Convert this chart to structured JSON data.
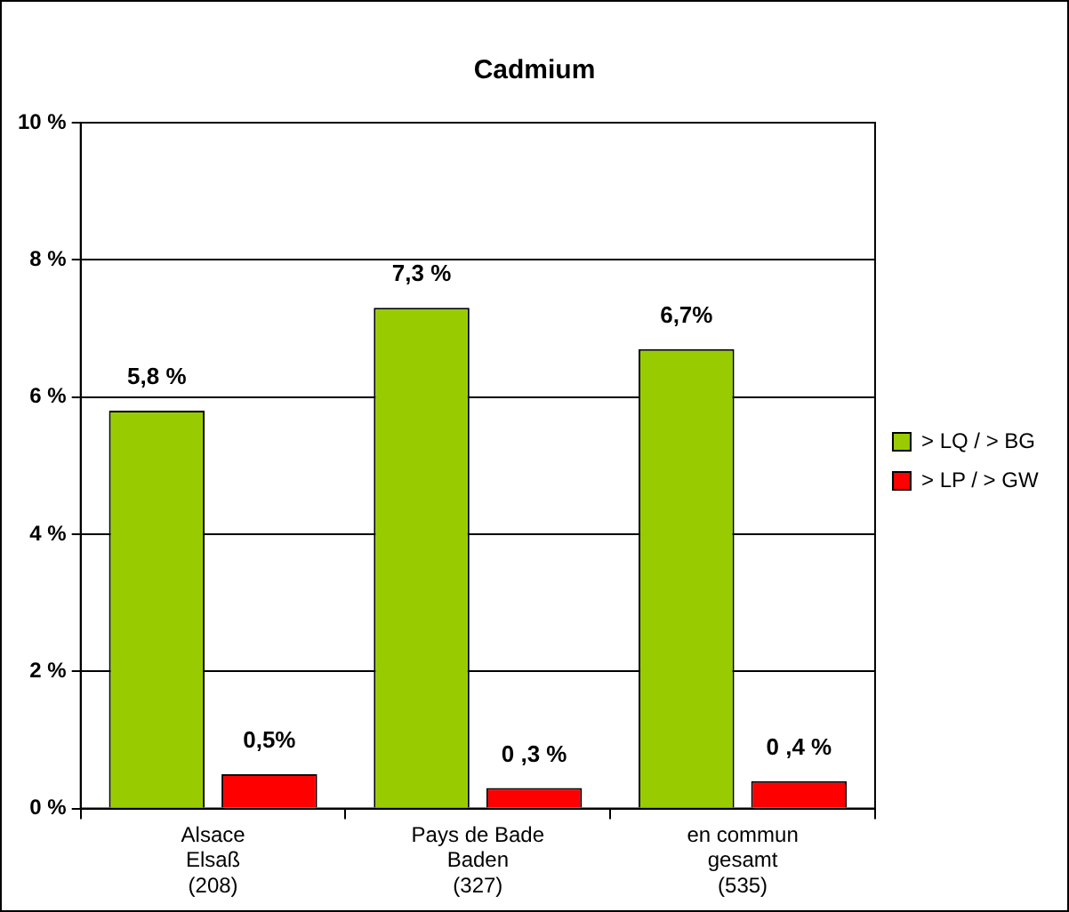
{
  "chart_data": {
    "type": "bar",
    "title": "Cadmium",
    "categories": [
      "Alsace\nElsaß\n(208)",
      "Pays de Bade\nBaden\n(327)",
      "en commun\ngesamt\n(535)"
    ],
    "series": [
      {
        "name": "> LQ / > BG",
        "color": "#99cc00",
        "values": [
          5.8,
          7.3,
          6.7
        ],
        "value_labels": [
          "5,8 %",
          "7,3 %",
          "6,7%"
        ]
      },
      {
        "name": "> LP / > GW",
        "color": "#ff0000",
        "values": [
          0.5,
          0.3,
          0.4
        ],
        "value_labels": [
          "0,5%",
          "0 ,3 %",
          "0 ,4 %"
        ]
      }
    ],
    "ylim": [
      0,
      10
    ],
    "yticks": [
      {
        "value": 0,
        "label": "0 %"
      },
      {
        "value": 2,
        "label": "2 %"
      },
      {
        "value": 4,
        "label": "4 %"
      },
      {
        "value": 6,
        "label": "6 %"
      },
      {
        "value": 8,
        "label": "8 %"
      },
      {
        "value": 10,
        "label": "10 %"
      }
    ],
    "grid": "y",
    "legend": "right"
  }
}
